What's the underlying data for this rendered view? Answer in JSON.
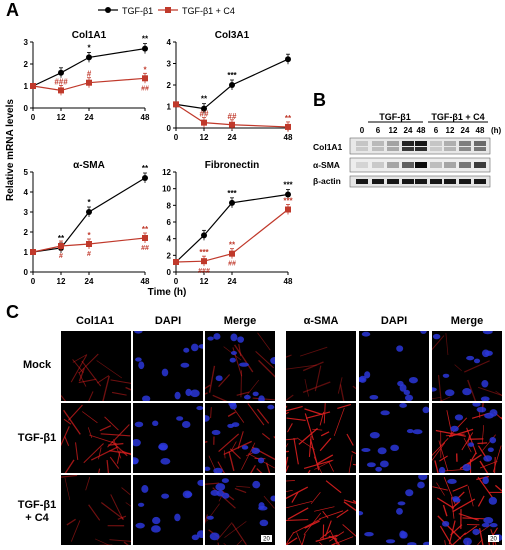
{
  "panels": {
    "a": "A",
    "b": "B",
    "c": "C"
  },
  "legend": {
    "series1": "TGF-β1",
    "series2": "TGF-β1 + C4"
  },
  "colors": {
    "series1": "#000000",
    "series2": "#c0392b",
    "red_stain": "#e02020",
    "blue_stain": "#2a36d8"
  },
  "chart_data": [
    {
      "type": "line",
      "title": "Col1A1",
      "x": [
        0,
        12,
        24,
        48
      ],
      "xlim": [
        0,
        48
      ],
      "ylim": [
        0,
        3
      ],
      "yticks": [
        0,
        1,
        2,
        3
      ],
      "series": [
        {
          "name": "TGF-β1",
          "values": [
            1.0,
            1.6,
            2.3,
            2.7
          ],
          "sig": [
            "",
            "",
            "*",
            "**"
          ]
        },
        {
          "name": "TGF-β1 + C4",
          "values": [
            1.0,
            0.8,
            1.15,
            1.35
          ],
          "sig": [
            "",
            "###",
            "#",
            "*"
          ],
          "sig2": [
            "",
            "",
            "",
            "##"
          ]
        }
      ]
    },
    {
      "type": "line",
      "title": "Col3A1",
      "x": [
        0,
        12,
        24,
        48
      ],
      "xlim": [
        0,
        48
      ],
      "ylim": [
        0,
        4
      ],
      "yticks": [
        0,
        1,
        2,
        3,
        4
      ],
      "series": [
        {
          "name": "TGF-β1",
          "values": [
            1.1,
            0.9,
            2.0,
            3.2
          ],
          "sig": [
            "",
            "**",
            "***",
            ""
          ]
        },
        {
          "name": "TGF-β1 + C4",
          "values": [
            1.1,
            0.25,
            0.15,
            0.05
          ],
          "sig": [
            "",
            "##",
            "##",
            "**"
          ]
        }
      ]
    },
    {
      "type": "line",
      "title": "α-SMA",
      "x": [
        0,
        12,
        24,
        48
      ],
      "xlim": [
        0,
        48
      ],
      "ylim": [
        0,
        5
      ],
      "yticks": [
        0,
        1,
        2,
        3,
        4,
        5
      ],
      "series": [
        {
          "name": "TGF-β1",
          "values": [
            1.0,
            1.2,
            3.0,
            4.7
          ],
          "sig": [
            "",
            "**",
            "*",
            "**"
          ]
        },
        {
          "name": "TGF-β1 + C4",
          "values": [
            1.0,
            1.3,
            1.4,
            1.7
          ],
          "sig": [
            "",
            "",
            "*",
            "**"
          ],
          "sig2": [
            "",
            "#",
            "#",
            "##"
          ]
        }
      ]
    },
    {
      "type": "line",
      "title": "Fibronectin",
      "x": [
        0,
        12,
        24,
        48
      ],
      "xlim": [
        0,
        48
      ],
      "ylim": [
        0,
        12
      ],
      "yticks": [
        0,
        2,
        4,
        6,
        8,
        10,
        12
      ],
      "series": [
        {
          "name": "TGF-β1",
          "values": [
            1.2,
            4.4,
            8.3,
            9.3
          ],
          "sig": [
            "",
            "",
            "***",
            "***"
          ]
        },
        {
          "name": "TGF-β1 + C4",
          "values": [
            1.2,
            1.3,
            2.2,
            7.5
          ],
          "sig": [
            "",
            "***",
            "**",
            "***"
          ],
          "sig2": [
            "",
            "###",
            "##",
            ""
          ]
        }
      ]
    }
  ],
  "axes": {
    "ylabel": "Relative mRNA levels",
    "xlabel": "Time (h)"
  },
  "blot": {
    "groups": [
      "TGF-β1",
      "TGF-β1 + C4"
    ],
    "lanes": [
      "0",
      "6",
      "12",
      "24",
      "48",
      "6",
      "12",
      "24",
      "48"
    ],
    "unit": "(h)",
    "rows": [
      "Col1A1",
      "α-SMA",
      "β-actin"
    ]
  },
  "micro": {
    "col_headers": [
      "Col1A1",
      "DAPI",
      "Merge",
      "α-SMA",
      "DAPI",
      "Merge"
    ],
    "row_labels": [
      [
        "Mock"
      ],
      [
        "TGF-β1"
      ],
      [
        "TGF-β1",
        "+ C4"
      ]
    ],
    "scale": "20"
  }
}
